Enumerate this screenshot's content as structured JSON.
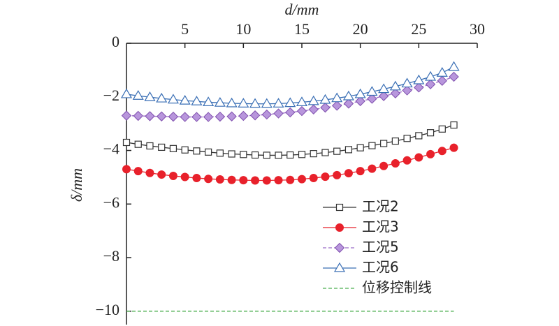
{
  "chart_data": {
    "type": "line",
    "x_label": "d/mm",
    "y_label": "δ/mm",
    "x": [
      0,
      1,
      2,
      3,
      4,
      5,
      6,
      7,
      8,
      9,
      10,
      11,
      12,
      13,
      14,
      15,
      16,
      17,
      18,
      19,
      20,
      21,
      22,
      23,
      24,
      25,
      26,
      27,
      28
    ],
    "xlim": [
      0,
      30
    ],
    "xticks": [
      5,
      10,
      15,
      20,
      25,
      30
    ],
    "x_axis_position": "top",
    "ylim": [
      -10.5,
      0
    ],
    "yticks": [
      0,
      {
        "value": -2,
        "label": "−2"
      },
      {
        "value": -4,
        "label": "−4"
      },
      {
        "value": -6,
        "label": "−6"
      },
      {
        "value": -8,
        "label": "−8"
      },
      {
        "value": -10,
        "label": "−10"
      }
    ],
    "legend": "lower right",
    "series": [
      {
        "name": "工况2",
        "color": "#333333",
        "marker": "square",
        "dashed": false,
        "values": [
          -3.7,
          -3.77,
          -3.83,
          -3.88,
          -3.93,
          -3.98,
          -4.02,
          -4.06,
          -4.1,
          -4.13,
          -4.15,
          -4.17,
          -4.18,
          -4.18,
          -4.17,
          -4.15,
          -4.12,
          -4.08,
          -4.03,
          -3.97,
          -3.9,
          -3.82,
          -3.74,
          -3.65,
          -3.55,
          -3.45,
          -3.34,
          -3.2,
          -3.05
        ]
      },
      {
        "name": "工况3",
        "color": "#e8212b",
        "marker": "circle",
        "dashed": false,
        "values": [
          -4.7,
          -4.77,
          -4.84,
          -4.9,
          -4.95,
          -4.99,
          -5.03,
          -5.06,
          -5.08,
          -5.1,
          -5.11,
          -5.12,
          -5.12,
          -5.11,
          -5.1,
          -5.07,
          -5.03,
          -4.98,
          -4.92,
          -4.85,
          -4.77,
          -4.68,
          -4.58,
          -4.48,
          -4.37,
          -4.26,
          -4.14,
          -4.02,
          -3.9
        ]
      },
      {
        "name": "工况5",
        "color": "#9b6cc8",
        "marker": "diamond",
        "dashed": true,
        "values": [
          -2.7,
          -2.71,
          -2.72,
          -2.73,
          -2.74,
          -2.75,
          -2.75,
          -2.75,
          -2.74,
          -2.73,
          -2.71,
          -2.69,
          -2.66,
          -2.62,
          -2.58,
          -2.53,
          -2.47,
          -2.4,
          -2.33,
          -2.25,
          -2.16,
          -2.07,
          -1.97,
          -1.87,
          -1.76,
          -1.65,
          -1.53,
          -1.4,
          -1.25
        ]
      },
      {
        "name": "工况6",
        "color": "#3a6fb5",
        "marker": "triangle",
        "dashed": false,
        "values": [
          -1.9,
          -1.96,
          -2.01,
          -2.06,
          -2.1,
          -2.14,
          -2.17,
          -2.2,
          -2.22,
          -2.24,
          -2.25,
          -2.26,
          -2.26,
          -2.25,
          -2.23,
          -2.2,
          -2.16,
          -2.11,
          -2.05,
          -1.98,
          -1.9,
          -1.81,
          -1.71,
          -1.61,
          -1.5,
          -1.38,
          -1.25,
          -1.1,
          -0.88
        ]
      },
      {
        "name": "位移控制线",
        "color": "#4caf50",
        "marker": "none",
        "dashed": true,
        "x": [
          0,
          28
        ],
        "values": [
          -10,
          -10
        ]
      }
    ]
  }
}
